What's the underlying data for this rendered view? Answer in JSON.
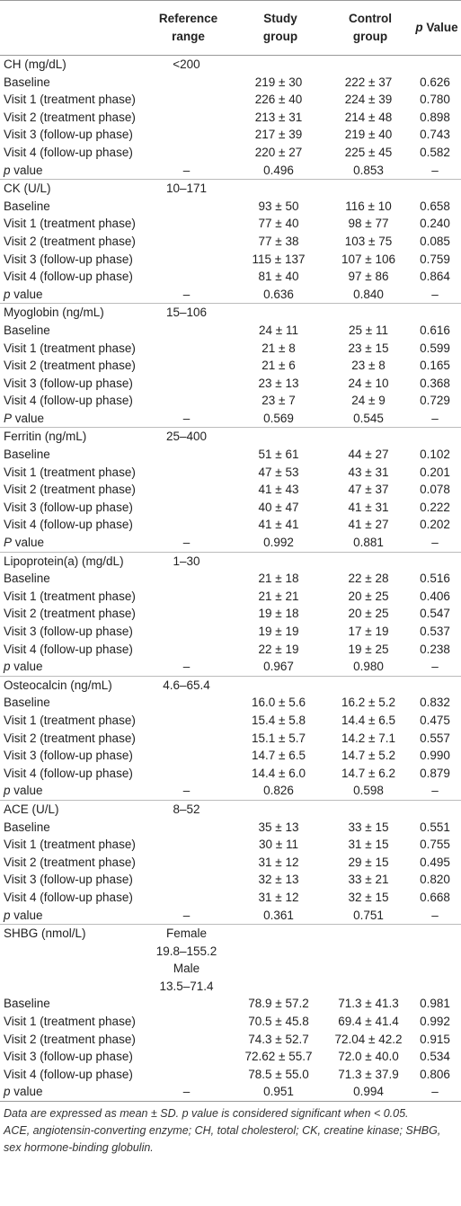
{
  "table": {
    "header": [
      "Reference range",
      "Study group",
      "Control group",
      "p Value"
    ],
    "sections": [
      {
        "title": "CH (mg/dL)",
        "reference": [
          "<200"
        ],
        "rows": [
          [
            "Baseline",
            null,
            "219 ± 30",
            "222 ± 37",
            "0.626"
          ],
          [
            "Visit 1 (treatment phase)",
            null,
            "226 ± 40",
            "224 ± 39",
            "0.780"
          ],
          [
            "Visit 2 (treatment phase)",
            null,
            "213 ± 31",
            "214 ± 48",
            "0.898"
          ],
          [
            "Visit 3 (follow-up phase)",
            null,
            "217 ± 39",
            "219 ± 40",
            "0.743"
          ],
          [
            "Visit 4 (follow-up phase)",
            null,
            "220 ± 27",
            "225 ± 45",
            "0.582"
          ],
          [
            "p value",
            "–",
            "0.496",
            "0.853",
            "–"
          ]
        ]
      },
      {
        "title": "CK (U/L)",
        "reference": [
          "10–171"
        ],
        "rows": [
          [
            "Baseline",
            null,
            "93 ± 50",
            "116 ± 10",
            "0.658"
          ],
          [
            "Visit 1 (treatment phase)",
            null,
            "77 ± 40",
            "98 ± 77",
            "0.240"
          ],
          [
            "Visit 2 (treatment phase)",
            null,
            "77 ± 38",
            "103 ± 75",
            "0.085"
          ],
          [
            "Visit 3 (follow-up phase)",
            null,
            "115 ± 137",
            "107 ± 106",
            "0.759"
          ],
          [
            "Visit 4 (follow-up phase)",
            null,
            "81 ± 40",
            "97 ± 86",
            "0.864"
          ],
          [
            "p value",
            "–",
            "0.636",
            "0.840",
            "–"
          ]
        ]
      },
      {
        "title": "Myoglobin (ng/mL)",
        "reference": [
          "15–106"
        ],
        "rows": [
          [
            "Baseline",
            null,
            "24 ± 11",
            "25 ± 11",
            "0.616"
          ],
          [
            "Visit 1 (treatment phase)",
            null,
            "21 ± 8",
            "23 ± 15",
            "0.599"
          ],
          [
            "Visit 2 (treatment phase)",
            null,
            "21 ± 6",
            "23 ± 8",
            "0.165"
          ],
          [
            "Visit 3 (follow-up phase)",
            null,
            "23 ± 13",
            "24 ± 10",
            "0.368"
          ],
          [
            "Visit 4 (follow-up phase)",
            null,
            "23 ± 7",
            "24 ± 9",
            "0.729"
          ],
          [
            "P value",
            "–",
            "0.569",
            "0.545",
            "–"
          ]
        ]
      },
      {
        "title": "Ferritin (ng/mL)",
        "reference": [
          "25–400"
        ],
        "rows": [
          [
            "Baseline",
            null,
            "51 ± 61",
            "44 ± 27",
            "0.102"
          ],
          [
            "Visit 1 (treatment phase)",
            null,
            "47 ± 53",
            "43 ± 31",
            "0.201"
          ],
          [
            "Visit 2 (treatment phase)",
            null,
            "41 ± 43",
            "47 ± 37",
            "0.078"
          ],
          [
            "Visit 3 (follow-up phase)",
            null,
            "40 ± 47",
            "41 ± 31",
            "0.222"
          ],
          [
            "Visit 4 (follow-up phase)",
            null,
            "41 ± 41",
            "41 ± 27",
            "0.202"
          ],
          [
            "P value",
            "–",
            "0.992",
            "0.881",
            "–"
          ]
        ]
      },
      {
        "title": "Lipoprotein(a) (mg/dL)",
        "reference": [
          "1–30"
        ],
        "rows": [
          [
            "Baseline",
            null,
            "21 ± 18",
            "22 ± 28",
            "0.516"
          ],
          [
            "Visit 1 (treatment phase)",
            null,
            "21 ± 21",
            "20 ± 25",
            "0.406"
          ],
          [
            "Visit 2 (treatment phase)",
            null,
            "19 ± 18",
            "20 ± 25",
            "0.547"
          ],
          [
            "Visit 3 (follow-up phase)",
            null,
            "19 ± 19",
            "17 ± 19",
            "0.537"
          ],
          [
            "Visit 4 (follow-up phase)",
            null,
            "22 ± 19",
            "19 ± 25",
            "0.238"
          ],
          [
            "p value",
            "–",
            "0.967",
            "0.980",
            "–"
          ]
        ]
      },
      {
        "title": "Osteocalcin (ng/mL)",
        "reference": [
          "4.6–65.4"
        ],
        "rows": [
          [
            "Baseline",
            null,
            "16.0 ± 5.6",
            "16.2 ± 5.2",
            "0.832"
          ],
          [
            "Visit 1 (treatment phase)",
            null,
            "15.4 ± 5.8",
            "14.4 ± 6.5",
            "0.475"
          ],
          [
            "Visit 2 (treatment phase)",
            null,
            "15.1 ± 5.7",
            "14.2 ± 7.1",
            "0.557"
          ],
          [
            "Visit 3 (follow-up phase)",
            null,
            "14.7 ± 6.5",
            "14.7 ± 5.2",
            "0.990"
          ],
          [
            "Visit 4 (follow-up phase)",
            null,
            "14.4 ± 6.0",
            "14.7 ± 6.2",
            "0.879"
          ],
          [
            "p value",
            "–",
            "0.826",
            "0.598",
            "–"
          ]
        ]
      },
      {
        "title": "ACE (U/L)",
        "reference": [
          "8–52"
        ],
        "rows": [
          [
            "Baseline",
            null,
            "35 ± 13",
            "33 ± 15",
            "0.551"
          ],
          [
            "Visit 1 (treatment phase)",
            null,
            "30 ± 11",
            "31 ± 15",
            "0.755"
          ],
          [
            "Visit 2 (treatment phase)",
            null,
            "31 ± 12",
            "29 ± 15",
            "0.495"
          ],
          [
            "Visit 3 (follow-up phase)",
            null,
            "32 ± 13",
            "33 ± 21",
            "0.820"
          ],
          [
            "Visit 4 (follow-up phase)",
            null,
            "31 ± 12",
            "32 ± 15",
            "0.668"
          ],
          [
            "p value",
            "–",
            "0.361",
            "0.751",
            "–"
          ]
        ]
      },
      {
        "title": "SHBG (nmol/L)",
        "reference": [
          "Female",
          "19.8–155.2",
          "Male",
          "13.5–71.4"
        ],
        "rows": [
          [
            "Baseline",
            null,
            "78.9 ± 57.2",
            "71.3 ± 41.3",
            "0.981"
          ],
          [
            "Visit 1 (treatment phase)",
            null,
            "70.5 ± 45.8",
            "69.4 ± 41.4",
            "0.992"
          ],
          [
            "Visit 2 (treatment phase)",
            null,
            "74.3 ± 52.7",
            "72.04 ± 42.2",
            "0.915"
          ],
          [
            "Visit 3 (follow-up phase)",
            null,
            "72.62 ± 55.7",
            "72.0 ± 40.0",
            "0.534"
          ],
          [
            "Visit 4 (follow-up phase)",
            null,
            "78.5 ± 55.0",
            "71.3 ± 37.9",
            "0.806"
          ],
          [
            "p value",
            "–",
            "0.951",
            "0.994",
            "–"
          ]
        ]
      }
    ],
    "footnotes": [
      "Data are expressed as mean ± SD. p value is considered significant when < 0.05.",
      "ACE, angiotensin-converting enzyme; CH, total cholesterol; CK, creatine kinase; SHBG, sex hormone-binding globulin."
    ]
  }
}
